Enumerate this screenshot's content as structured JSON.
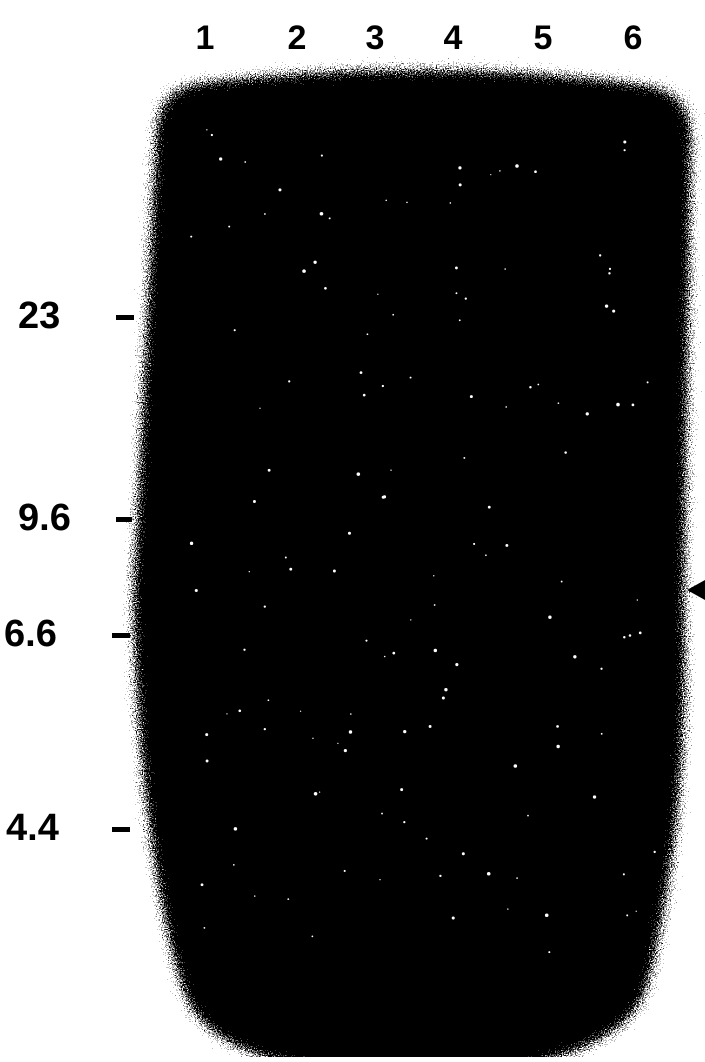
{
  "lanes": [
    "1",
    "2",
    "3",
    "4",
    "5",
    "6"
  ],
  "markers": [
    "23",
    "9.6",
    "6.6",
    "4.4"
  ]
}
